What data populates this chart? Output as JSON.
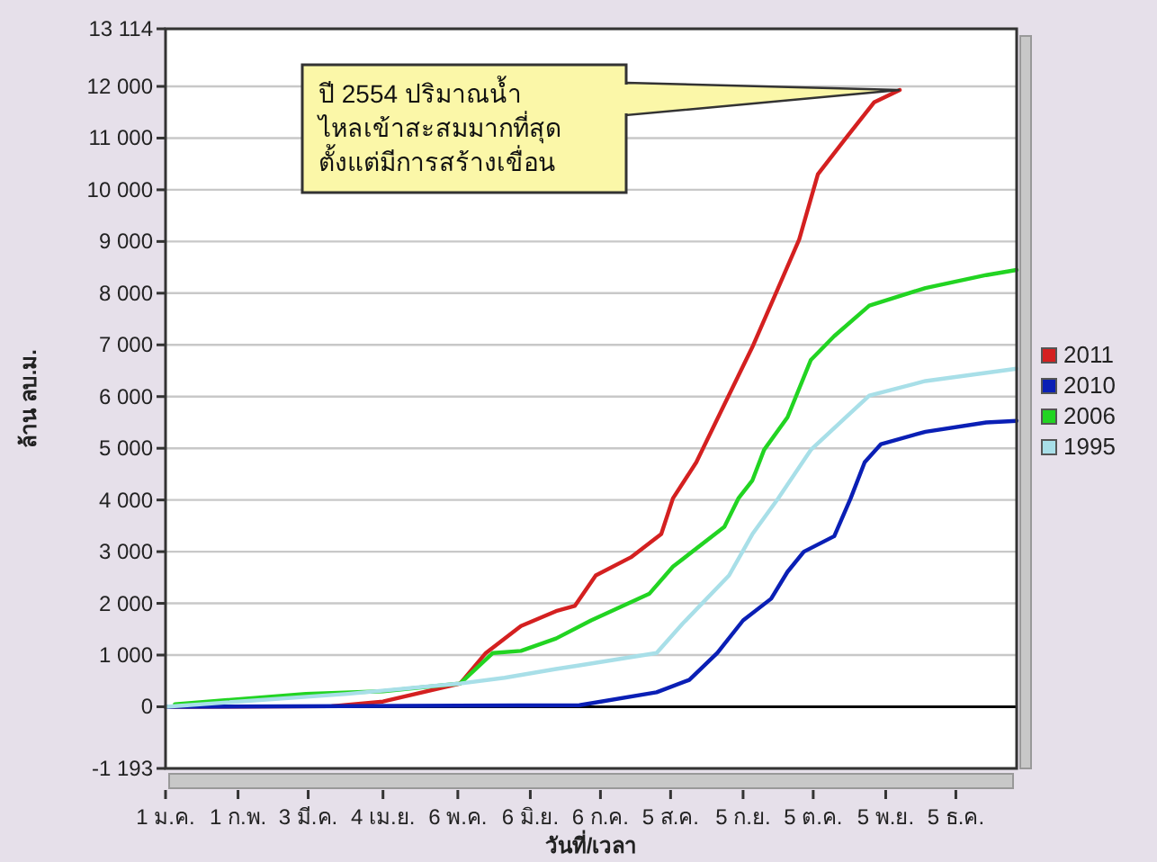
{
  "chart_data": {
    "type": "line",
    "xlabel": "วันที่/เวลา",
    "ylabel": "ล้าน ลบ.ม.",
    "xlim": [
      "--01-01",
      "--12-31"
    ],
    "xticks": [
      {
        "value": "--01-01",
        "label": "1 ม.ค."
      },
      {
        "value": "--02-01",
        "label": "1 ก.พ."
      },
      {
        "value": "--03-03",
        "label": "3 มี.ค."
      },
      {
        "value": "--04-04",
        "label": "4 เม.ย."
      },
      {
        "value": "--05-06",
        "label": "6 พ.ค."
      },
      {
        "value": "--06-06",
        "label": "6 มิ.ย."
      },
      {
        "value": "--07-06",
        "label": "6 ก.ค."
      },
      {
        "value": "--08-05",
        "label": "5 ส.ค."
      },
      {
        "value": "--09-05",
        "label": "5 ก.ย."
      },
      {
        "value": "--10-05",
        "label": "5 ต.ค."
      },
      {
        "value": "--11-05",
        "label": "5 พ.ย."
      },
      {
        "value": "--12-05",
        "label": "5 ธ.ค."
      }
    ],
    "ylim": [
      -1193,
      13114
    ],
    "yticks": [
      {
        "value": -1193,
        "label": "-1 193"
      },
      0,
      {
        "value": 1000,
        "label": "1 000"
      },
      {
        "value": 2000,
        "label": "2 000"
      },
      {
        "value": 3000,
        "label": "3 000"
      },
      {
        "value": 4000,
        "label": "4 000"
      },
      {
        "value": 5000,
        "label": "5 000"
      },
      {
        "value": 6000,
        "label": "6 000"
      },
      {
        "value": 7000,
        "label": "7 000"
      },
      {
        "value": 8000,
        "label": "8 000"
      },
      {
        "value": 9000,
        "label": "9 000"
      },
      {
        "value": 10000,
        "label": "10 000"
      },
      {
        "value": 11000,
        "label": "11 000"
      },
      {
        "value": 12000,
        "label": "12 000"
      },
      {
        "value": 13114,
        "label": "13 114"
      }
    ],
    "grid": "y",
    "legend": "right",
    "marker": "none",
    "line_style": "solid",
    "ref_lines": [
      {
        "axis": "y",
        "value": 0,
        "color": "#000000"
      }
    ],
    "annotations": [
      "ปี 2554 ปริมาณน้ำ\nไหลเข้าสะสมมากที่สุด\nตั้งแต่มีการสร้างเขื่อน"
    ],
    "series": [
      {
        "name": "2011",
        "color": "#d42020",
        "x": [
          "--01-01",
          "--03-13",
          "--04-04",
          "--05-07",
          "--05-18",
          "--06-02",
          "--06-17",
          "--06-25",
          "--07-04",
          "--07-19",
          "--08-01",
          "--08-06",
          "--08-16",
          "--08-25",
          "--09-09",
          "--09-20",
          "--09-29",
          "--10-07",
          "--10-19",
          "--10-31",
          "--11-11"
        ],
        "values": [
          0,
          10,
          100,
          450,
          1040,
          1560,
          1850,
          1950,
          2540,
          2890,
          3340,
          4030,
          4730,
          5570,
          6960,
          8100,
          9040,
          10300,
          11000,
          11690,
          11930
        ]
      },
      {
        "name": "2010",
        "color": "#0a1fb5",
        "x": [
          "--01-01",
          "--06-27",
          "--07-30",
          "--08-13",
          "--08-25",
          "--09-05",
          "--09-17",
          "--09-24",
          "--10-01",
          "--10-14",
          "--10-21",
          "--10-27",
          "--11-03",
          "--11-22",
          "--12-18",
          "--12-31"
        ],
        "values": [
          0,
          30,
          280,
          520,
          1040,
          1670,
          2090,
          2610,
          3000,
          3300,
          4030,
          4730,
          5080,
          5320,
          5500,
          5530
        ]
      },
      {
        "name": "2006",
        "color": "#22d422",
        "x": [
          "--01-05",
          "--03-02",
          "--04-04",
          "--05-07",
          "--05-21",
          "--06-02",
          "--06-17",
          "--07-02",
          "--07-27",
          "--08-06",
          "--08-28",
          "--09-03",
          "--09-09",
          "--09-14",
          "--09-24",
          "--10-04",
          "--10-14",
          "--10-29",
          "--11-22",
          "--12-18",
          "--12-31"
        ],
        "values": [
          50,
          250,
          300,
          450,
          1040,
          1080,
          1320,
          1670,
          2190,
          2710,
          3480,
          4030,
          4380,
          4970,
          5600,
          6710,
          7170,
          7760,
          8100,
          8350,
          8450
        ]
      },
      {
        "name": "1995",
        "color": "#a8dfe8",
        "x": [
          "--01-01",
          "--03-20",
          "--05-07",
          "--05-26",
          "--06-17",
          "--06-27",
          "--07-30",
          "--08-10",
          "--08-30",
          "--09-09",
          "--09-20",
          "--10-04",
          "--10-19",
          "--10-29",
          "--11-22",
          "--12-31"
        ],
        "values": [
          0,
          250,
          450,
          560,
          730,
          800,
          1040,
          1600,
          2540,
          3340,
          4030,
          4970,
          5600,
          6020,
          6300,
          6540
        ]
      }
    ]
  }
}
